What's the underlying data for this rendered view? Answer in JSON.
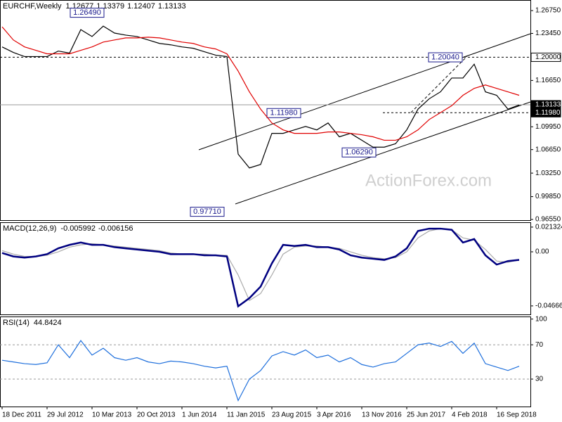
{
  "chart_data": [
    {
      "type": "line",
      "title": "EURCHF,Weekly",
      "ohlc": [
        1.12677,
        1.13379,
        1.12407,
        1.13133
      ],
      "watermark": "ActionForex.com",
      "ylim": [
        0.9645,
        1.2828
      ],
      "yticks": [
        {
          "value": 1.2675,
          "label": "1.26750"
        },
        {
          "value": 1.2345,
          "label": "1.23450"
        },
        {
          "value": 1.1665,
          "label": "1.16650"
        },
        {
          "value": 1.0995,
          "label": "1.09950"
        },
        {
          "value": 1.0665,
          "label": "1.06650"
        },
        {
          "value": 1.0325,
          "label": "1.03250"
        },
        {
          "value": 0.9985,
          "label": "0.99850"
        },
        {
          "value": 0.9655,
          "label": "0.96550"
        }
      ],
      "price_lines": [
        {
          "value": 1.2,
          "label": "1.20000"
        },
        {
          "value": 1.13133,
          "label": "1.13133"
        },
        {
          "value": 1.1198,
          "label": "1.11980"
        }
      ],
      "annotations": [
        {
          "value": 1.2649,
          "label": "1.26490"
        },
        {
          "value": 1.1198,
          "label": "1.11980"
        },
        {
          "value": 1.2004,
          "label": "1.20040"
        },
        {
          "value": 1.0629,
          "label": "1.06290"
        },
        {
          "value": 0.9771,
          "label": "0.97710"
        }
      ],
      "series": [
        {
          "color": "#000000",
          "values": [
            1.215,
            1.207,
            1.201,
            1.201,
            1.201,
            1.209,
            1.206,
            1.24,
            1.23,
            1.245,
            1.235,
            1.232,
            1.23,
            1.225,
            1.22,
            1.218,
            1.215,
            1.213,
            1.208,
            1.203,
            1.201,
            1.06,
            1.04,
            1.045,
            1.09,
            1.09,
            1.095,
            1.1,
            1.095,
            1.105,
            1.085,
            1.09,
            1.08,
            1.07,
            1.07,
            1.075,
            1.095,
            1.125,
            1.14,
            1.15,
            1.17,
            1.17,
            1.19,
            1.15,
            1.145,
            1.125,
            1.131
          ]
        },
        {
          "color": "#e00000",
          "values": [
            1.244,
            1.225,
            1.215,
            1.21,
            1.205,
            1.205,
            1.205,
            1.21,
            1.215,
            1.222,
            1.225,
            1.228,
            1.228,
            1.229,
            1.228,
            1.225,
            1.222,
            1.22,
            1.215,
            1.212,
            1.205,
            1.18,
            1.15,
            1.125,
            1.105,
            1.095,
            1.09,
            1.09,
            1.09,
            1.092,
            1.092,
            1.09,
            1.088,
            1.085,
            1.08,
            1.08,
            1.085,
            1.095,
            1.11,
            1.12,
            1.13,
            1.145,
            1.155,
            1.16,
            1.155,
            1.15,
            1.145
          ]
        }
      ]
    },
    {
      "type": "line",
      "title": "MACD(12,26,9)",
      "readings": [
        -0.005992,
        -0.006156
      ],
      "ylim": [
        -0.054,
        0.0255
      ],
      "yticks": [
        0.021324,
        {
          "value": 0,
          "label": "0.00"
        },
        -0.046663
      ],
      "series": [
        {
          "color": "#aaaaaa",
          "values": [
            0.001,
            -0.002,
            -0.004,
            -0.004,
            -0.003,
            0.0,
            0.004,
            0.006,
            0.007,
            0.006,
            0.005,
            0.004,
            0.003,
            0.002,
            0.001,
            -0.001,
            -0.002,
            -0.002,
            -0.002,
            -0.003,
            -0.003,
            -0.02,
            -0.042,
            -0.036,
            -0.02,
            -0.002,
            0.004,
            0.005,
            0.005,
            0.004,
            0.003,
            0.0,
            -0.003,
            -0.005,
            -0.006,
            -0.005,
            0.0,
            0.012,
            0.018,
            0.02,
            0.019,
            0.012,
            0.01,
            0.002,
            -0.008,
            -0.009,
            -0.007
          ]
        },
        {
          "color": "#000080",
          "values": [
            -0.001,
            -0.004,
            -0.005,
            -0.004,
            -0.002,
            0.003,
            0.006,
            0.008,
            0.006,
            0.006,
            0.004,
            0.003,
            0.002,
            0.001,
            0.0,
            -0.002,
            -0.002,
            -0.002,
            -0.003,
            -0.003,
            -0.004,
            -0.047,
            -0.04,
            -0.03,
            -0.01,
            0.006,
            0.005,
            0.006,
            0.004,
            0.004,
            0.002,
            -0.003,
            -0.005,
            -0.006,
            -0.007,
            -0.004,
            0.003,
            0.018,
            0.02,
            0.02,
            0.019,
            0.008,
            0.011,
            -0.003,
            -0.011,
            -0.008,
            -0.007
          ]
        }
      ]
    },
    {
      "type": "line",
      "title": "RSI(14)",
      "readings": [
        44.8424
      ],
      "ylim": [
        -2,
        103
      ],
      "yticks": [
        100,
        70,
        30
      ],
      "grid": true,
      "categories": [
        "18 Dec 2011",
        null,
        null,
        null,
        "29 Jul 2012",
        null,
        null,
        null,
        "10 Mar 2013",
        null,
        null,
        null,
        "20 Oct 2013",
        null,
        null,
        null,
        "1 Jun 2014",
        null,
        null,
        null,
        "11 Jan 2015",
        null,
        null,
        null,
        "23 Aug 2015",
        null,
        null,
        null,
        "3 Apr 2016",
        null,
        null,
        null,
        "13 Nov 2016",
        null,
        null,
        null,
        "25 Jun 2017",
        null,
        null,
        null,
        "4 Feb 2018",
        null,
        null,
        null,
        "16 Sep 2018",
        null,
        null
      ],
      "series": [
        {
          "color": "#1e6fdc",
          "values": [
            52,
            50,
            48,
            47,
            49,
            70,
            55,
            75,
            58,
            66,
            55,
            52,
            55,
            50,
            48,
            51,
            50,
            48,
            45,
            43,
            45,
            5,
            30,
            40,
            57,
            62,
            58,
            64,
            55,
            58,
            50,
            55,
            47,
            44,
            48,
            50,
            60,
            70,
            72,
            68,
            74,
            60,
            72,
            48,
            44,
            40,
            45
          ]
        }
      ]
    }
  ]
}
